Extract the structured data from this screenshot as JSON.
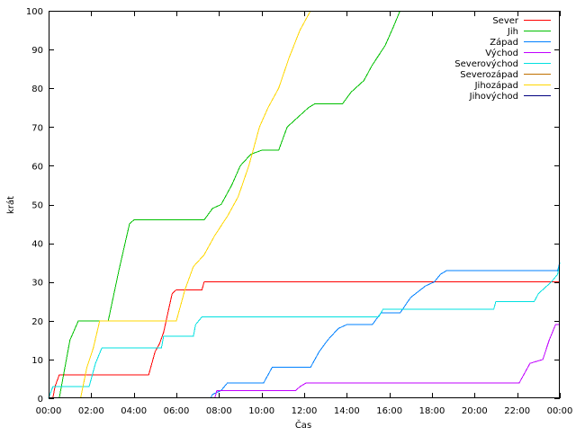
{
  "chart_data": {
    "type": "line",
    "title": "",
    "xlabel": "Čas",
    "ylabel": "krát",
    "xlim": [
      0,
      24
    ],
    "ylim": [
      0,
      100
    ],
    "x_ticks": [
      0,
      2,
      4,
      6,
      8,
      10,
      12,
      14,
      16,
      18,
      20,
      22,
      24
    ],
    "x_tick_labels": [
      "00:00",
      "02:00",
      "04:00",
      "06:00",
      "08:00",
      "10:00",
      "12:00",
      "14:00",
      "16:00",
      "18:00",
      "20:00",
      "22:00",
      "00:00"
    ],
    "y_ticks": [
      0,
      10,
      20,
      30,
      40,
      50,
      60,
      70,
      80,
      90,
      100
    ],
    "y_tick_labels": [
      "0",
      "10",
      "20",
      "30",
      "40",
      "50",
      "60",
      "70",
      "80",
      "90",
      "100"
    ],
    "grid": false,
    "legend_position": "top-right",
    "series": [
      {
        "name": "Sever",
        "color": "#ff0000",
        "points": [
          [
            0.2,
            0
          ],
          [
            0.3,
            3
          ],
          [
            0.5,
            6
          ],
          [
            4.7,
            6
          ],
          [
            5.0,
            12
          ],
          [
            5.2,
            14
          ],
          [
            5.4,
            17
          ],
          [
            5.6,
            22
          ],
          [
            5.8,
            27
          ],
          [
            6.0,
            28
          ],
          [
            7.2,
            28
          ],
          [
            7.3,
            30
          ],
          [
            24,
            30
          ]
        ]
      },
      {
        "name": "Jih",
        "color": "#00c000",
        "points": [
          [
            0.5,
            0
          ],
          [
            0.7,
            6
          ],
          [
            1.0,
            15
          ],
          [
            1.4,
            20
          ],
          [
            2.8,
            20
          ],
          [
            3.3,
            33
          ],
          [
            3.8,
            45
          ],
          [
            4.0,
            46
          ],
          [
            7.3,
            46
          ],
          [
            7.7,
            49
          ],
          [
            8.1,
            50
          ],
          [
            8.6,
            55
          ],
          [
            9.0,
            60
          ],
          [
            9.5,
            63
          ],
          [
            10.0,
            64
          ],
          [
            10.8,
            64
          ],
          [
            11.2,
            70
          ],
          [
            11.6,
            72
          ],
          [
            12.2,
            75
          ],
          [
            12.5,
            76
          ],
          [
            13.8,
            76
          ],
          [
            14.2,
            79
          ],
          [
            14.8,
            82
          ],
          [
            15.2,
            86
          ],
          [
            15.8,
            91
          ],
          [
            16.2,
            96
          ],
          [
            16.5,
            100
          ]
        ]
      },
      {
        "name": "Západ",
        "color": "#0080ff",
        "points": [
          [
            7.6,
            0
          ],
          [
            7.7,
            1
          ],
          [
            8.1,
            2
          ],
          [
            8.4,
            4
          ],
          [
            10.1,
            4
          ],
          [
            10.5,
            8
          ],
          [
            12.3,
            8
          ],
          [
            12.7,
            12
          ],
          [
            13.1,
            15
          ],
          [
            13.6,
            18
          ],
          [
            14.0,
            19
          ],
          [
            15.2,
            19
          ],
          [
            15.6,
            22
          ],
          [
            16.5,
            22
          ],
          [
            17.0,
            26
          ],
          [
            17.7,
            29
          ],
          [
            18.1,
            30
          ],
          [
            18.4,
            32
          ],
          [
            18.7,
            33
          ],
          [
            23.9,
            33
          ],
          [
            24,
            35
          ]
        ]
      },
      {
        "name": "Východ",
        "color": "#c000ff",
        "points": [
          [
            7.8,
            0
          ],
          [
            7.9,
            2
          ],
          [
            11.6,
            2
          ],
          [
            11.8,
            3
          ],
          [
            12.1,
            4
          ],
          [
            22.1,
            4
          ],
          [
            22.3,
            6
          ],
          [
            22.6,
            9
          ],
          [
            23.2,
            10
          ],
          [
            23.5,
            15
          ],
          [
            23.8,
            19
          ],
          [
            24,
            19
          ]
        ]
      },
      {
        "name": "Severovýchod",
        "color": "#00e0e0",
        "points": [
          [
            0,
            0
          ],
          [
            0.2,
            3
          ],
          [
            1.9,
            3
          ],
          [
            2.2,
            9
          ],
          [
            2.5,
            13
          ],
          [
            5.3,
            13
          ],
          [
            5.4,
            16
          ],
          [
            6.8,
            16
          ],
          [
            6.9,
            19
          ],
          [
            7.2,
            21
          ],
          [
            15.5,
            21
          ],
          [
            15.7,
            23
          ],
          [
            20.9,
            23
          ],
          [
            21.0,
            25
          ],
          [
            22.8,
            25
          ],
          [
            23.0,
            27
          ],
          [
            23.6,
            30
          ],
          [
            23.9,
            32
          ],
          [
            24,
            35
          ]
        ]
      },
      {
        "name": "Severozápad",
        "color": "#c07000",
        "points": []
      },
      {
        "name": "Jihozápad",
        "color": "#ffd700",
        "points": [
          [
            1.5,
            0
          ],
          [
            1.8,
            8
          ],
          [
            2.1,
            13
          ],
          [
            2.4,
            20
          ],
          [
            6.0,
            20
          ],
          [
            6.4,
            28
          ],
          [
            6.8,
            34
          ],
          [
            7.3,
            37
          ],
          [
            7.8,
            42
          ],
          [
            8.4,
            47
          ],
          [
            8.9,
            52
          ],
          [
            9.4,
            60
          ],
          [
            9.9,
            70
          ],
          [
            10.3,
            75
          ],
          [
            10.8,
            80
          ],
          [
            11.3,
            88
          ],
          [
            11.8,
            95
          ],
          [
            12.3,
            100
          ]
        ]
      },
      {
        "name": "Jihovýchod",
        "color": "#000080",
        "points": []
      }
    ]
  }
}
